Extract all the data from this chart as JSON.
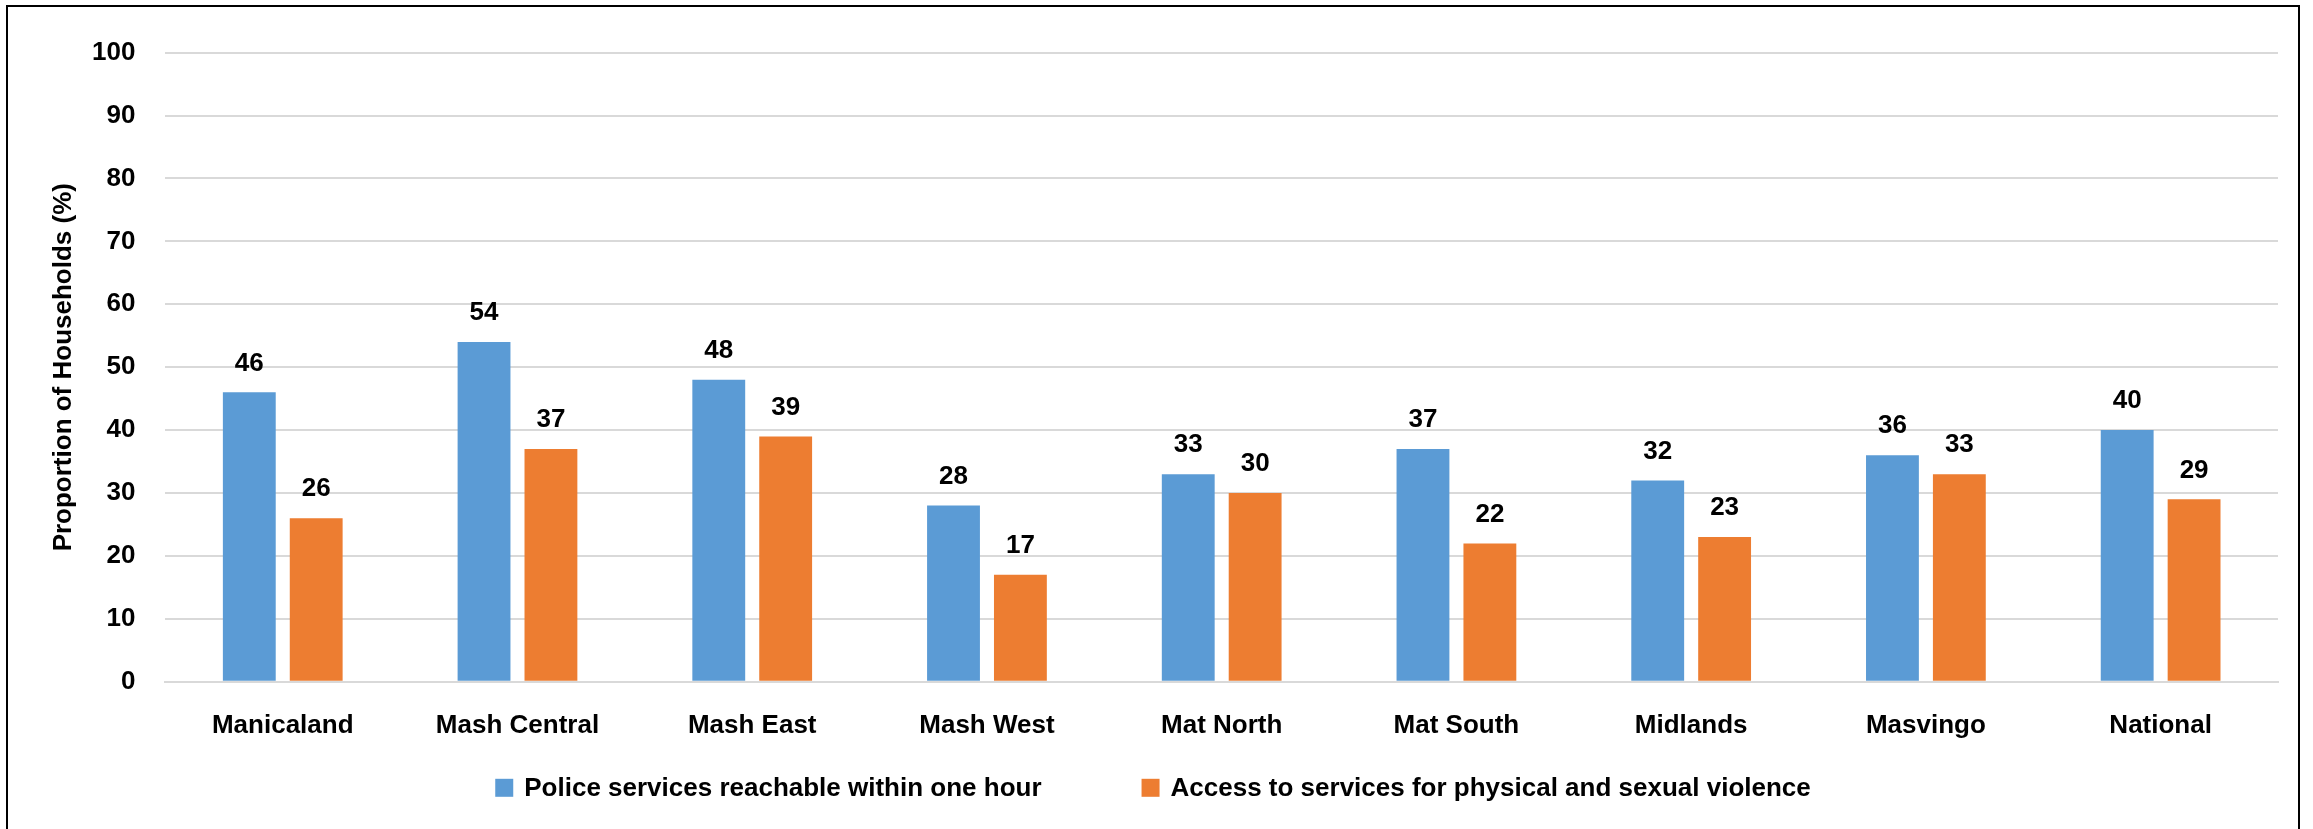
{
  "chart_data": {
    "type": "bar",
    "ylabel": "Proportion of Households (%)",
    "categories": [
      "Manicaland",
      "Mash Central",
      "Mash East",
      "Mash West",
      "Mat North",
      "Mat South",
      "Midlands",
      "Masvingo",
      "National"
    ],
    "series": [
      {
        "name": "Police services reachable within one hour",
        "color": "#5b9bd5",
        "values": [
          46,
          54,
          48,
          28,
          33,
          37,
          32,
          36,
          40
        ]
      },
      {
        "name": "Access to services for physical and sexual violence",
        "color": "#ed7d31",
        "values": [
          26,
          37,
          39,
          17,
          30,
          22,
          23,
          33,
          29
        ]
      }
    ],
    "ylim": [
      0,
      100
    ],
    "yticks": [
      0,
      10,
      20,
      30,
      40,
      50,
      60,
      70,
      80,
      90,
      100
    ],
    "grid": "y",
    "legend": "bottom",
    "data_labels": true
  }
}
